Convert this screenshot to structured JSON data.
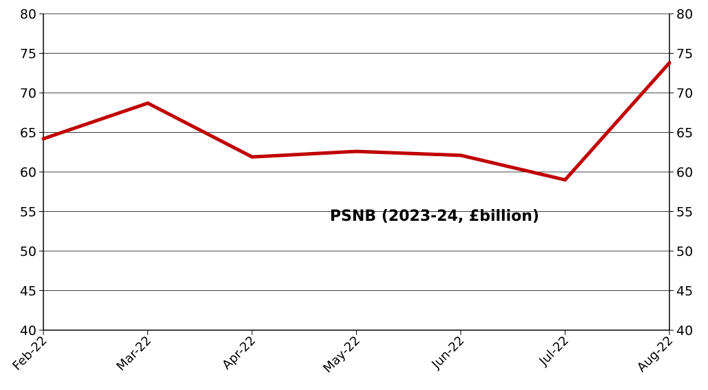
{
  "chart_data": {
    "type": "line",
    "categories": [
      "Feb-22",
      "Mar-22",
      "Apr-22",
      "May-22",
      "Jun-22",
      "Jul-22",
      "Aug-22"
    ],
    "series": [
      {
        "values": [
          64.2,
          68.7,
          61.9,
          62.6,
          62.1,
          59.0,
          73.8
        ],
        "color": "#c00000"
      }
    ],
    "annotation": "PSNB (2023-24, £billion)",
    "ylim": [
      40,
      80
    ],
    "yticks": [
      "40",
      "45",
      "50",
      "55",
      "60",
      "65",
      "70",
      "75",
      "80"
    ],
    "y_axis_both_sides": true,
    "grid": true
  }
}
